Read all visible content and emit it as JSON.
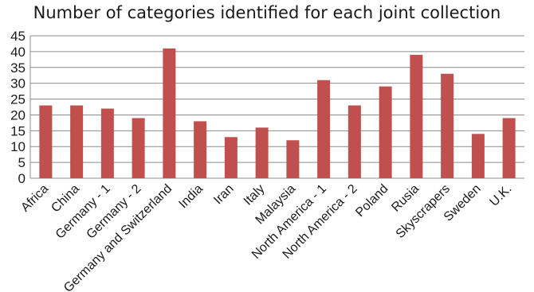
{
  "chart_data": {
    "type": "bar",
    "title": "Number of categories identified for each joint collection",
    "categories": [
      "Africa",
      "China",
      "Germany - 1",
      "Germany - 2",
      "Germany and Switzerland",
      "India",
      "Iran",
      "Italy",
      "Malaysia",
      "North America - 1",
      "North America - 2",
      "Poland",
      "Rusia",
      "Skyscrapers",
      "Sweden",
      "U.K."
    ],
    "values": [
      23,
      23,
      22,
      19,
      41,
      18,
      13,
      16,
      12,
      31,
      23,
      29,
      39,
      33,
      14,
      19
    ],
    "ylim": [
      0,
      45
    ],
    "yticks": [
      0,
      5,
      10,
      15,
      20,
      25,
      30,
      35,
      40,
      45
    ],
    "grid": true,
    "legend": "none",
    "bar_color": "#c0504d",
    "grid_color": "#8c8c8c"
  }
}
